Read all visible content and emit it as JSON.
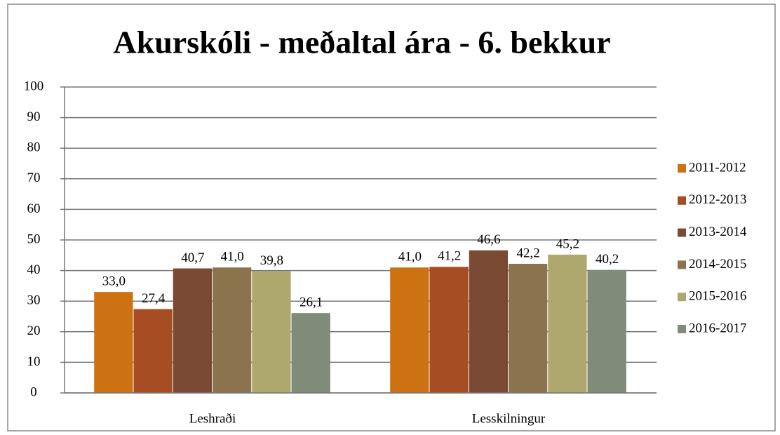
{
  "chart_data": {
    "type": "bar",
    "title": "Akurskóli - meðaltal ára - 6. bekkur",
    "categories": [
      "Leshraði",
      "Lesskilningur"
    ],
    "series": [
      {
        "name": "2011-2012",
        "color": "#cc7212",
        "values": [
          33.0,
          41.0
        ],
        "value_labels": [
          "33,0",
          "41,0"
        ]
      },
      {
        "name": "2012-2013",
        "color": "#a64d24",
        "values": [
          27.4,
          41.2
        ],
        "value_labels": [
          "27,4",
          "41,2"
        ]
      },
      {
        "name": "2013-2014",
        "color": "#7b4a35",
        "values": [
          40.7,
          46.6
        ],
        "value_labels": [
          "40,7",
          "46,6"
        ]
      },
      {
        "name": "2014-2015",
        "color": "#8b734e",
        "values": [
          41.0,
          42.2
        ],
        "value_labels": [
          "41,0",
          "42,2"
        ]
      },
      {
        "name": "2015-2016",
        "color": "#aea86f",
        "values": [
          39.8,
          45.2
        ],
        "value_labels": [
          "39,8",
          "45,2"
        ]
      },
      {
        "name": "2016-2017",
        "color": "#808c78",
        "values": [
          26.1,
          40.2
        ],
        "value_labels": [
          "26,1",
          "40,2"
        ]
      }
    ],
    "ylim": [
      0,
      100
    ],
    "yticks": [
      0,
      10,
      20,
      30,
      40,
      50,
      60,
      70,
      80,
      90,
      100
    ],
    "grid": true,
    "legend": "right"
  }
}
